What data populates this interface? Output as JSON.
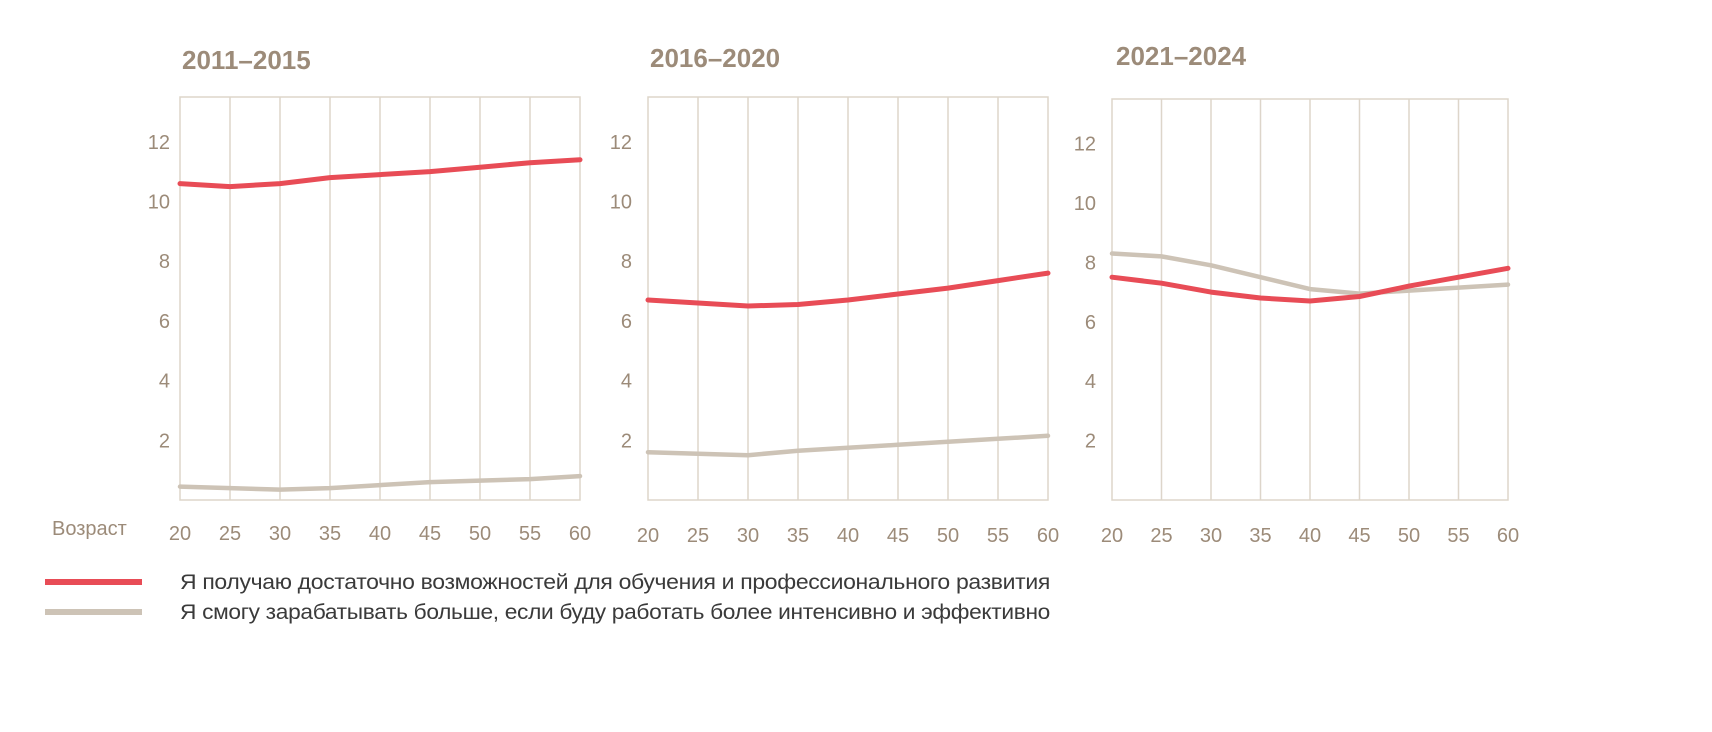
{
  "colors": {
    "series_red": "#e84c56",
    "series_beige": "#cdc3b6",
    "grid": "#ddd5ca",
    "text_muted": "#9c8b79",
    "text_dark": "#3a3a3a"
  },
  "chart_data": [
    {
      "type": "line",
      "title": "2011–2015",
      "xlabel": "Возраст",
      "ylabel": "",
      "x": [
        20,
        25,
        30,
        35,
        40,
        45,
        50,
        55,
        60
      ],
      "x_ticks": [
        20,
        25,
        30,
        35,
        40,
        45,
        50,
        55,
        60
      ],
      "y_ticks": [
        2,
        4,
        6,
        8,
        10,
        12
      ],
      "ylim": [
        0,
        13.5
      ],
      "grid": true,
      "series": [
        {
          "name": "Я получаю достаточно возможностей для обучения и профессионального развития",
          "values": [
            10.6,
            10.5,
            10.6,
            10.8,
            10.9,
            11.0,
            11.15,
            11.3,
            11.4
          ]
        },
        {
          "name": "Я смогу зарабатывать больше, если буду работать более интенсивно и эффективно",
          "values": [
            0.45,
            0.4,
            0.35,
            0.4,
            0.5,
            0.6,
            0.65,
            0.7,
            0.8
          ]
        }
      ]
    },
    {
      "type": "line",
      "title": "2016–2020",
      "xlabel": "",
      "ylabel": "",
      "x": [
        20,
        25,
        30,
        35,
        40,
        45,
        50,
        55,
        60
      ],
      "x_ticks": [
        20,
        25,
        30,
        35,
        40,
        45,
        50,
        55,
        60
      ],
      "y_ticks": [
        2,
        4,
        6,
        8,
        10,
        12
      ],
      "ylim": [
        0,
        13.5
      ],
      "grid": true,
      "series": [
        {
          "name": "Я получаю достаточно возможностей для обучения и профессионального развития",
          "values": [
            6.7,
            6.6,
            6.5,
            6.55,
            6.7,
            6.9,
            7.1,
            7.35,
            7.6
          ]
        },
        {
          "name": "Я смогу зарабатывать больше, если буду работать более интенсивно и эффективно",
          "values": [
            1.6,
            1.55,
            1.5,
            1.65,
            1.75,
            1.85,
            1.95,
            2.05,
            2.15
          ]
        }
      ]
    },
    {
      "type": "line",
      "title": "2021–2024",
      "xlabel": "",
      "ylabel": "",
      "x": [
        20,
        25,
        30,
        35,
        40,
        45,
        50,
        55,
        60
      ],
      "x_ticks": [
        20,
        25,
        30,
        35,
        40,
        45,
        50,
        55,
        60
      ],
      "y_ticks": [
        2,
        4,
        6,
        8,
        10,
        12
      ],
      "ylim": [
        0,
        13.5
      ],
      "grid": true,
      "series": [
        {
          "name": "Я получаю достаточно возможностей для обучения и профессионального развития",
          "values": [
            7.5,
            7.3,
            7.0,
            6.8,
            6.7,
            6.85,
            7.2,
            7.5,
            7.8
          ]
        },
        {
          "name": "Я смогу зарабатывать больше, если буду работать более интенсивно и эффективно",
          "values": [
            8.3,
            8.2,
            7.9,
            7.5,
            7.1,
            6.95,
            7.05,
            7.15,
            7.25
          ]
        }
      ]
    }
  ],
  "legend": {
    "items": [
      {
        "label": "Я получаю достаточно возможностей для обучения и профессионального развития",
        "color": "#e84c56"
      },
      {
        "label": "Я смогу зарабатывать больше, если буду работать более интенсивно и эффективно",
        "color": "#cdc3b6"
      }
    ]
  }
}
